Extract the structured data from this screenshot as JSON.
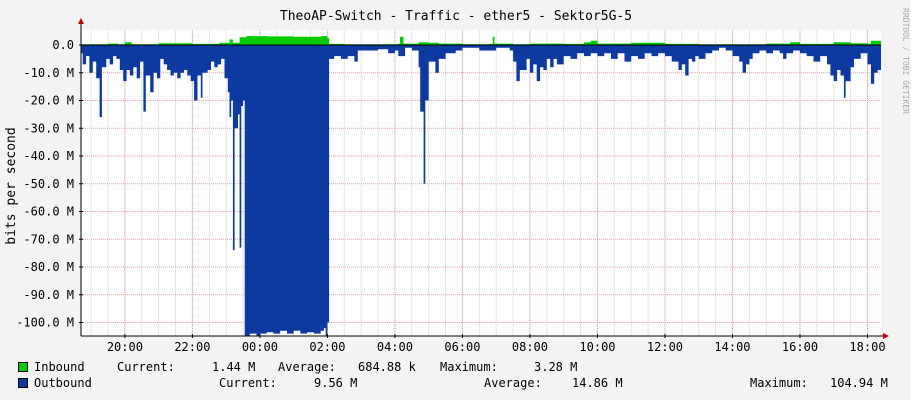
{
  "chart_data": {
    "type": "area",
    "title": "TheoAP-Switch - Traffic - ether5 - Sektor5G-5",
    "ylabel": "bits per second",
    "watermark": "RRDTOOL / TOBI OETIKER",
    "ylim": [
      -105,
      3
    ],
    "y_ticks": [
      {
        "value": 0,
        "label": "0.0"
      },
      {
        "value": -10,
        "label": "-10.0 M"
      },
      {
        "value": -20,
        "label": "-20.0 M"
      },
      {
        "value": -30,
        "label": "-30.0 M"
      },
      {
        "value": -40,
        "label": "-40.0 M"
      },
      {
        "value": -50,
        "label": "-50.0 M"
      },
      {
        "value": -60,
        "label": "-60.0 M"
      },
      {
        "value": -70,
        "label": "-70.0 M"
      },
      {
        "value": -80,
        "label": "-80.0 M"
      },
      {
        "value": -90,
        "label": "-90.0 M"
      },
      {
        "value": -100,
        "label": "-100.0 M"
      }
    ],
    "xlim": [
      18.7,
      42.4
    ],
    "x_ticks": [
      {
        "value": 20,
        "label": "20:00"
      },
      {
        "value": 22,
        "label": "22:00"
      },
      {
        "value": 24,
        "label": "00:00"
      },
      {
        "value": 26,
        "label": "02:00"
      },
      {
        "value": 28,
        "label": "04:00"
      },
      {
        "value": 30,
        "label": "06:00"
      },
      {
        "value": 32,
        "label": "08:00"
      },
      {
        "value": 34,
        "label": "10:00"
      },
      {
        "value": 36,
        "label": "12:00"
      },
      {
        "value": 38,
        "label": "14:00"
      },
      {
        "value": 40,
        "label": "16:00"
      },
      {
        "value": 42,
        "label": "18:00"
      }
    ],
    "series": [
      {
        "name": "Inbound",
        "color": "#00cc00",
        "stats": {
          "current_label": "Current:",
          "current": "1.44 M",
          "average_label": "Average:",
          "average": "684.88 k",
          "maximum_label": "Maximum:",
          "maximum": "3.28 M"
        },
        "points": [
          [
            18.7,
            0.3
          ],
          [
            19.5,
            0.5
          ],
          [
            19.8,
            0.3
          ],
          [
            20.0,
            1.0
          ],
          [
            20.2,
            0.3
          ],
          [
            21.0,
            0.6
          ],
          [
            22.0,
            0.4
          ],
          [
            22.8,
            0.8
          ],
          [
            23.1,
            2.0
          ],
          [
            23.2,
            0.8
          ],
          [
            23.4,
            2.8
          ],
          [
            23.6,
            3.2
          ],
          [
            24.2,
            3.1
          ],
          [
            25.0,
            3.0
          ],
          [
            25.8,
            3.2
          ],
          [
            26.0,
            2.5
          ],
          [
            26.05,
            0.4
          ],
          [
            26.5,
            0.3
          ],
          [
            27.5,
            0.3
          ],
          [
            28.1,
            0.5
          ],
          [
            28.15,
            3.0
          ],
          [
            28.25,
            0.5
          ],
          [
            28.7,
            1.0
          ],
          [
            29.0,
            0.8
          ],
          [
            29.3,
            0.5
          ],
          [
            30.0,
            0.3
          ],
          [
            30.8,
            0.4
          ],
          [
            30.9,
            3.0
          ],
          [
            30.95,
            0.5
          ],
          [
            31.5,
            0.3
          ],
          [
            32.0,
            0.5
          ],
          [
            33.0,
            0.4
          ],
          [
            33.6,
            1.0
          ],
          [
            33.8,
            1.5
          ],
          [
            34.0,
            0.5
          ],
          [
            35.0,
            0.8
          ],
          [
            36.0,
            0.4
          ],
          [
            37.0,
            0.3
          ],
          [
            38.0,
            0.3
          ],
          [
            39.0,
            0.5
          ],
          [
            39.7,
            1.0
          ],
          [
            40.0,
            0.4
          ],
          [
            41.0,
            1.0
          ],
          [
            41.5,
            0.6
          ],
          [
            42.0,
            0.5
          ],
          [
            42.1,
            1.5
          ],
          [
            42.4,
            1.4
          ]
        ]
      },
      {
        "name": "Outbound",
        "color": "#0c3aa0",
        "stats": {
          "current_label": "Current:",
          "current": "9.56 M",
          "average_label": "Average:",
          "average": "14.86 M",
          "maximum_label": "Maximum:",
          "maximum": "104.94 M"
        },
        "points": [
          [
            18.7,
            -3
          ],
          [
            18.75,
            -7
          ],
          [
            18.85,
            -4
          ],
          [
            18.95,
            -10
          ],
          [
            19.05,
            -6
          ],
          [
            19.15,
            -12
          ],
          [
            19.25,
            -26
          ],
          [
            19.32,
            -8
          ],
          [
            19.45,
            -5
          ],
          [
            19.55,
            -7
          ],
          [
            19.65,
            -4
          ],
          [
            19.75,
            -5
          ],
          [
            19.85,
            -9
          ],
          [
            19.95,
            -13
          ],
          [
            20.05,
            -9
          ],
          [
            20.15,
            -11
          ],
          [
            20.25,
            -8
          ],
          [
            20.35,
            -12
          ],
          [
            20.45,
            -6
          ],
          [
            20.55,
            -24
          ],
          [
            20.62,
            -11
          ],
          [
            20.75,
            -17
          ],
          [
            20.85,
            -10
          ],
          [
            20.95,
            -12
          ],
          [
            21.05,
            -5
          ],
          [
            21.15,
            -7
          ],
          [
            21.25,
            -9
          ],
          [
            21.35,
            -11
          ],
          [
            21.45,
            -10
          ],
          [
            21.55,
            -12
          ],
          [
            21.65,
            -10
          ],
          [
            21.75,
            -9
          ],
          [
            21.85,
            -11
          ],
          [
            21.95,
            -13
          ],
          [
            22.05,
            -20
          ],
          [
            22.15,
            -11
          ],
          [
            22.25,
            -19
          ],
          [
            22.3,
            -10
          ],
          [
            22.45,
            -9
          ],
          [
            22.55,
            -6
          ],
          [
            22.65,
            -8
          ],
          [
            22.75,
            -7
          ],
          [
            22.85,
            -5
          ],
          [
            22.95,
            -12
          ],
          [
            23.05,
            -17
          ],
          [
            23.1,
            -26
          ],
          [
            23.15,
            -20
          ],
          [
            23.2,
            -74
          ],
          [
            23.25,
            -30
          ],
          [
            23.35,
            -25
          ],
          [
            23.4,
            -73
          ],
          [
            23.45,
            -22
          ],
          [
            23.5,
            -20
          ],
          [
            23.55,
            -105
          ],
          [
            23.7,
            -104
          ],
          [
            23.9,
            -105
          ],
          [
            24.0,
            -104
          ],
          [
            24.2,
            -103.5
          ],
          [
            24.4,
            -104
          ],
          [
            24.6,
            -103
          ],
          [
            24.8,
            -104
          ],
          [
            25.0,
            -103
          ],
          [
            25.2,
            -104
          ],
          [
            25.4,
            -103.5
          ],
          [
            25.6,
            -104
          ],
          [
            25.8,
            -103
          ],
          [
            25.9,
            -102
          ],
          [
            25.95,
            -105
          ],
          [
            26.0,
            -100
          ],
          [
            26.05,
            -5
          ],
          [
            26.2,
            -4
          ],
          [
            26.4,
            -5
          ],
          [
            26.6,
            -4
          ],
          [
            26.8,
            -6
          ],
          [
            26.9,
            -2
          ],
          [
            27.5,
            -1.5
          ],
          [
            27.8,
            -3
          ],
          [
            28.0,
            -2
          ],
          [
            28.1,
            -4
          ],
          [
            28.3,
            -1
          ],
          [
            28.5,
            -2
          ],
          [
            28.7,
            -8
          ],
          [
            28.75,
            -24
          ],
          [
            28.85,
            -50
          ],
          [
            28.9,
            -20
          ],
          [
            29.0,
            -6
          ],
          [
            29.2,
            -10
          ],
          [
            29.3,
            -5
          ],
          [
            29.5,
            -3
          ],
          [
            29.8,
            -2
          ],
          [
            30.0,
            -1
          ],
          [
            30.5,
            -2
          ],
          [
            31.0,
            -1
          ],
          [
            31.4,
            -2
          ],
          [
            31.5,
            -6
          ],
          [
            31.6,
            -13
          ],
          [
            31.7,
            -9
          ],
          [
            31.9,
            -5
          ],
          [
            32.0,
            -10
          ],
          [
            32.1,
            -7
          ],
          [
            32.2,
            -13
          ],
          [
            32.3,
            -8
          ],
          [
            32.4,
            -9
          ],
          [
            32.5,
            -5
          ],
          [
            32.6,
            -8
          ],
          [
            32.7,
            -5
          ],
          [
            32.8,
            -7
          ],
          [
            33.0,
            -4
          ],
          [
            33.2,
            -5
          ],
          [
            33.4,
            -3
          ],
          [
            33.6,
            -4
          ],
          [
            33.8,
            -3
          ],
          [
            34.0,
            -4
          ],
          [
            34.2,
            -3
          ],
          [
            34.4,
            -5
          ],
          [
            34.6,
            -3
          ],
          [
            34.8,
            -6
          ],
          [
            35.0,
            -4
          ],
          [
            35.2,
            -5
          ],
          [
            35.4,
            -3
          ],
          [
            35.6,
            -4
          ],
          [
            35.8,
            -3
          ],
          [
            36.0,
            -4
          ],
          [
            36.2,
            -6
          ],
          [
            36.4,
            -9
          ],
          [
            36.5,
            -7
          ],
          [
            36.6,
            -11
          ],
          [
            36.7,
            -5
          ],
          [
            36.8,
            -6
          ],
          [
            36.9,
            -4
          ],
          [
            37.0,
            -5
          ],
          [
            37.2,
            -3
          ],
          [
            37.4,
            -2
          ],
          [
            37.6,
            -1
          ],
          [
            37.8,
            -2
          ],
          [
            38.0,
            -4
          ],
          [
            38.2,
            -6
          ],
          [
            38.3,
            -10
          ],
          [
            38.4,
            -7
          ],
          [
            38.5,
            -5
          ],
          [
            38.6,
            -3
          ],
          [
            38.8,
            -2
          ],
          [
            39.0,
            -3
          ],
          [
            39.2,
            -2
          ],
          [
            39.4,
            -3
          ],
          [
            39.5,
            -5
          ],
          [
            39.6,
            -3
          ],
          [
            39.8,
            -2
          ],
          [
            40.0,
            -3
          ],
          [
            40.2,
            -4
          ],
          [
            40.4,
            -6
          ],
          [
            40.6,
            -4
          ],
          [
            40.8,
            -7
          ],
          [
            40.9,
            -11
          ],
          [
            41.0,
            -13
          ],
          [
            41.1,
            -9
          ],
          [
            41.2,
            -11
          ],
          [
            41.3,
            -19
          ],
          [
            41.35,
            -13
          ],
          [
            41.5,
            -8
          ],
          [
            41.6,
            -5
          ],
          [
            41.8,
            -3
          ],
          [
            42.0,
            -7
          ],
          [
            42.1,
            -14
          ],
          [
            42.2,
            -10
          ],
          [
            42.3,
            -9
          ],
          [
            42.4,
            -9.5
          ]
        ]
      }
    ]
  }
}
